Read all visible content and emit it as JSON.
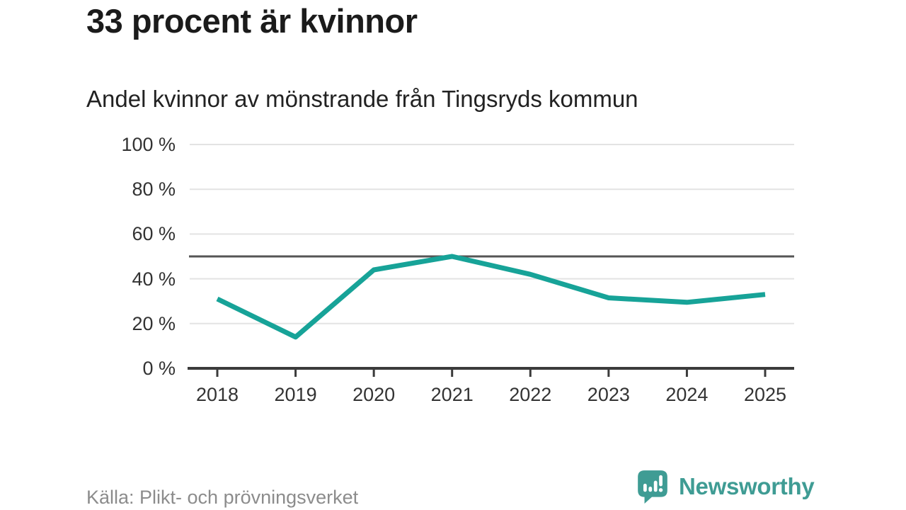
{
  "header": {
    "title": "33 procent är kvinnor",
    "subtitle": "Andel kvinnor av mönstrande från Tingsryds kommun"
  },
  "footer": {
    "source": "Källa: Plikt- och prövningsverket",
    "brand": "Newsworthy",
    "brand_icon": "newsworthy-speech-bubble-bar-chart-icon"
  },
  "colors": {
    "line": "#17a398",
    "grid": "#e3e3e3",
    "axis": "#3b3b3b",
    "reference_line": "#565656",
    "title_text": "#1b1b1b",
    "tick_text": "#333333",
    "source_text": "#8c8c8c",
    "brand": "#3f9c94",
    "background": "#ffffff"
  },
  "chart_data": {
    "type": "line",
    "title": "33 procent är kvinnor",
    "subtitle": "Andel kvinnor av mönstrande från Tingsryds kommun",
    "x": [
      "2018",
      "2019",
      "2020",
      "2021",
      "2022",
      "2023",
      "2024",
      "2025"
    ],
    "series": [
      {
        "name": "Andel kvinnor av mönstrande",
        "values": [
          31,
          14,
          44,
          50,
          42,
          31.5,
          29.5,
          33
        ]
      }
    ],
    "unit": "%",
    "ylim": [
      0,
      100
    ],
    "yticks": [
      0,
      20,
      40,
      60,
      80,
      100
    ],
    "ytick_labels": [
      "0 %",
      "20 %",
      "40 %",
      "60 %",
      "80 %",
      "100 %"
    ],
    "reference_line": 50,
    "grid": true,
    "legend": false,
    "source": "Källa: Plikt- och prövningsverket"
  }
}
